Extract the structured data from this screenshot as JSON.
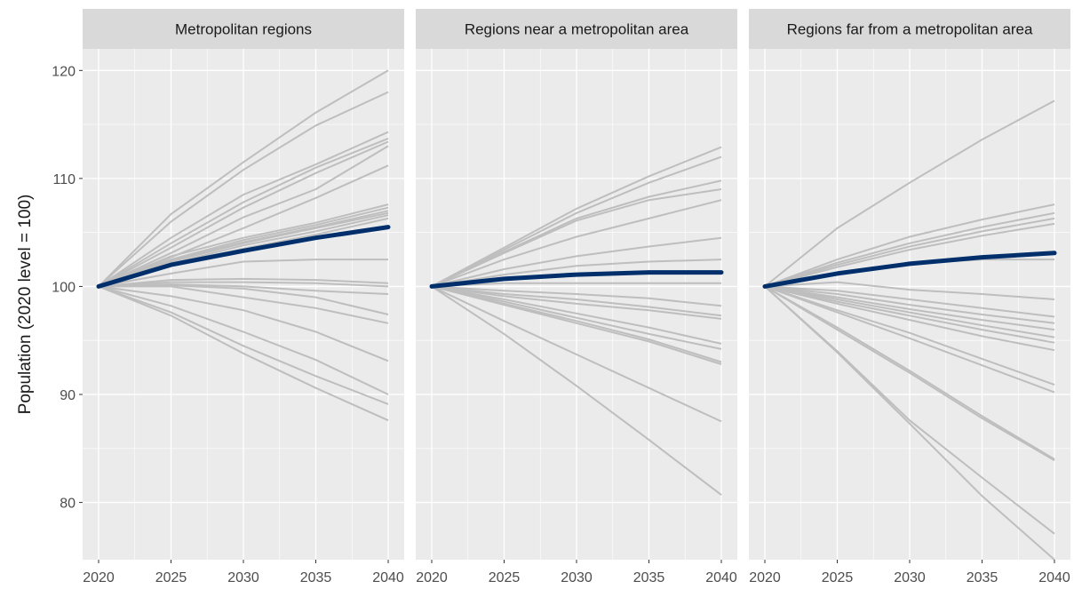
{
  "chart_data": {
    "type": "line",
    "ylabel": "Population (2020 level = 100)",
    "xlabel": "",
    "x": [
      2020,
      2025,
      2030,
      2035,
      2040
    ],
    "x_ticks": [
      "2020",
      "2025",
      "2030",
      "2035",
      "2040"
    ],
    "y_ticks": [
      "80",
      "90",
      "100",
      "110",
      "120"
    ],
    "ylim": [
      74.7,
      122
    ],
    "xlim": [
      2019,
      2041
    ],
    "grid": true,
    "colors": {
      "background_series": "#bebebe",
      "highlight_series": "#002f6c",
      "panel_bg": "#ebebeb",
      "strip_bg": "#d9d9d9",
      "grid": "#ffffff"
    },
    "panels": [
      {
        "title": "Metropolitan regions",
        "highlight": [
          100,
          102.0,
          103.3,
          104.5,
          105.5
        ],
        "series": [
          [
            100,
            106.7,
            111.5,
            116.1,
            120.0
          ],
          [
            100,
            106.0,
            110.8,
            114.9,
            118.0
          ],
          [
            100,
            104.5,
            108.5,
            111.3,
            114.3
          ],
          [
            100,
            104.0,
            107.8,
            111.0,
            113.7
          ],
          [
            100,
            103.6,
            107.3,
            110.5,
            113.4
          ],
          [
            100,
            103.1,
            106.4,
            109.0,
            113.0
          ],
          [
            100,
            102.7,
            105.4,
            108.2,
            111.2
          ],
          [
            100,
            102.8,
            104.5,
            105.9,
            107.6
          ],
          [
            100,
            102.5,
            104.3,
            105.7,
            107.3
          ],
          [
            100,
            102.4,
            104.1,
            105.5,
            107.0
          ],
          [
            100,
            102.3,
            104.0,
            105.4,
            106.8
          ],
          [
            100,
            102.1,
            103.8,
            105.1,
            106.6
          ],
          [
            100,
            102.0,
            103.5,
            104.8,
            106.3
          ],
          [
            100,
            101.2,
            102.3,
            102.5,
            102.5
          ],
          [
            100,
            100.6,
            100.7,
            100.6,
            100.3
          ],
          [
            100,
            100.4,
            100.4,
            100.3,
            100.0
          ],
          [
            100,
            100.2,
            100.0,
            99.6,
            99.3
          ],
          [
            100,
            100.1,
            99.8,
            99.0,
            97.4
          ],
          [
            100,
            100.0,
            99.0,
            98.0,
            96.6
          ],
          [
            100,
            99.1,
            97.8,
            95.8,
            93.1
          ],
          [
            100,
            98.2,
            95.8,
            93.2,
            90.0
          ],
          [
            100,
            97.6,
            94.5,
            91.7,
            89.1
          ],
          [
            100,
            97.3,
            93.8,
            90.6,
            87.6
          ]
        ]
      },
      {
        "title": "Regions near a metropolitan area",
        "highlight": [
          100,
          100.7,
          101.1,
          101.3,
          101.3
        ],
        "series": [
          [
            100,
            103.6,
            107.2,
            110.2,
            112.9
          ],
          [
            100,
            103.4,
            106.8,
            109.6,
            112.0
          ],
          [
            100,
            103.2,
            106.3,
            108.3,
            109.8
          ],
          [
            100,
            103.1,
            106.1,
            108.0,
            109.0
          ],
          [
            100,
            102.5,
            104.6,
            106.3,
            108.0
          ],
          [
            100,
            101.6,
            102.8,
            103.7,
            104.5
          ],
          [
            100,
            101.1,
            101.9,
            102.3,
            102.5
          ],
          [
            100,
            100.3,
            100.3,
            100.3,
            100.3
          ],
          [
            100,
            99.6,
            99.3,
            98.9,
            98.2
          ],
          [
            100,
            99.3,
            98.8,
            98.1,
            97.3
          ],
          [
            100,
            99.1,
            98.4,
            97.8,
            97.0
          ],
          [
            100,
            98.8,
            97.5,
            96.2,
            94.7
          ],
          [
            100,
            98.6,
            97.1,
            95.6,
            94.2
          ],
          [
            100,
            98.4,
            96.8,
            95.1,
            93.0
          ],
          [
            100,
            98.3,
            96.6,
            94.9,
            92.8
          ],
          [
            100,
            96.8,
            93.7,
            90.6,
            87.5
          ],
          [
            100,
            95.6,
            90.8,
            85.8,
            80.7
          ]
        ]
      },
      {
        "title": "Regions far from a metropolitan area",
        "highlight": [
          100,
          101.2,
          102.1,
          102.7,
          103.1
        ],
        "series": [
          [
            100,
            105.4,
            109.6,
            113.6,
            117.2
          ],
          [
            100,
            102.5,
            104.6,
            106.2,
            107.6
          ],
          [
            100,
            102.2,
            104.0,
            105.5,
            106.8
          ],
          [
            100,
            102.0,
            103.7,
            105.1,
            106.3
          ],
          [
            100,
            101.8,
            103.4,
            104.7,
            105.8
          ],
          [
            100,
            101.3,
            102.1,
            102.5,
            102.5
          ],
          [
            100,
            100.4,
            99.7,
            99.3,
            98.8
          ],
          [
            100,
            99.6,
            98.8,
            98.0,
            97.2
          ],
          [
            100,
            99.3,
            98.3,
            97.4,
            96.6
          ],
          [
            100,
            99.0,
            97.9,
            96.9,
            96.0
          ],
          [
            100,
            98.8,
            97.6,
            96.4,
            95.3
          ],
          [
            100,
            98.6,
            97.3,
            96.0,
            94.8
          ],
          [
            100,
            98.4,
            96.9,
            95.4,
            94.1
          ],
          [
            100,
            97.8,
            95.7,
            93.3,
            90.9
          ],
          [
            100,
            97.6,
            95.2,
            92.7,
            90.2
          ],
          [
            100,
            96.2,
            92.2,
            88.0,
            84.0
          ],
          [
            100,
            96.0,
            92.0,
            87.8,
            83.9
          ],
          [
            100,
            94.0,
            87.6,
            82.3,
            77.1
          ],
          [
            100,
            93.9,
            87.3,
            80.6,
            74.7
          ]
        ]
      }
    ]
  }
}
